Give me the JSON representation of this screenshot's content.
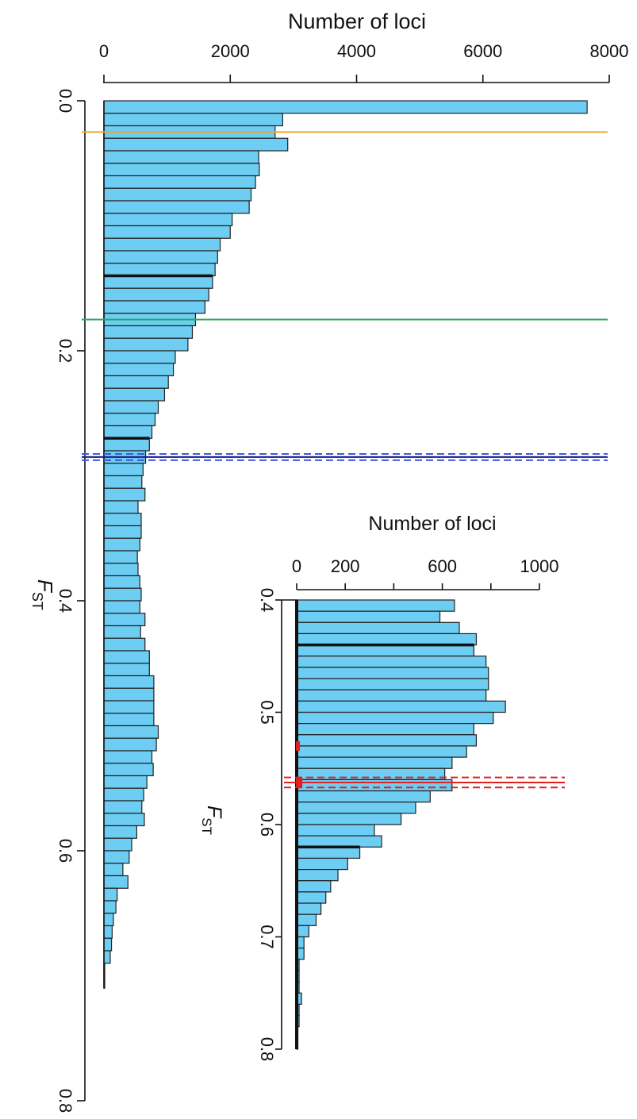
{
  "chart_data": [
    {
      "type": "bar",
      "orientation": "horizontal",
      "xlabel": "Number of loci",
      "ylabel": "F_ST",
      "xlim": [
        0,
        8000
      ],
      "ylim": [
        0,
        0.8
      ],
      "x_ticks": [
        0,
        2000,
        4000,
        6000,
        8000
      ],
      "x_tick_labels": [
        "0",
        "2000",
        "4000",
        "6000",
        "8000"
      ],
      "y_ticks": [
        0.0,
        0.2,
        0.4,
        0.6,
        0.8
      ],
      "y_tick_labels": [
        "0.0",
        "0.2",
        "0.4",
        "0.6",
        "0.8"
      ],
      "bin_width": 0.01,
      "bin_start": 0.0,
      "values": [
        7650,
        2830,
        2710,
        2910,
        2450,
        2460,
        2400,
        2330,
        2300,
        2030,
        2000,
        1840,
        1800,
        1760,
        1720,
        1660,
        1600,
        1450,
        1400,
        1330,
        1130,
        1100,
        1020,
        960,
        860,
        810,
        760,
        720,
        660,
        620,
        600,
        650,
        540,
        590,
        590,
        570,
        530,
        540,
        570,
        590,
        570,
        650,
        580,
        650,
        720,
        720,
        790,
        790,
        790,
        790,
        860,
        830,
        760,
        780,
        680,
        630,
        600,
        640,
        520,
        440,
        400,
        300,
        380,
        210,
        190,
        150,
        130,
        120,
        100,
        5,
        5
      ],
      "background_series_label": "",
      "black_bar_bins": [
        14,
        27
      ],
      "reference_lines": [
        {
          "y": 0.025,
          "color": "#f5a623",
          "style": "solid"
        },
        {
          "y": 0.175,
          "color": "#27a85a",
          "style": "solid"
        },
        {
          "y": 0.285,
          "color": "#1a1a8c",
          "style": "solid"
        },
        {
          "y": 0.2825,
          "color": "#3b5bdb",
          "style": "dashed"
        },
        {
          "y": 0.2875,
          "color": "#3b5bdb",
          "style": "dashed"
        }
      ],
      "annotations": [
        ""
      ]
    },
    {
      "type": "bar",
      "orientation": "horizontal",
      "xlabel": "Number of loci",
      "ylabel": "F_ST",
      "xlim": [
        0,
        1000
      ],
      "ylim": [
        0.4,
        0.8
      ],
      "x_ticks": [
        0,
        200,
        400,
        600,
        800,
        1000
      ],
      "x_tick_labels": [
        "0",
        "200",
        "",
        "600",
        "",
        "1000"
      ],
      "y_ticks": [
        0.4,
        0.5,
        0.6,
        0.7,
        0.8
      ],
      "y_tick_labels": [
        "0.4",
        "0.5",
        "0.6",
        "0.7",
        "0.8"
      ],
      "bin_width": 0.01,
      "bin_start": 0.4,
      "values": [
        650,
        590,
        670,
        740,
        730,
        780,
        790,
        790,
        780,
        860,
        810,
        730,
        740,
        700,
        640,
        610,
        640,
        550,
        490,
        430,
        320,
        350,
        260,
        210,
        170,
        140,
        120,
        100,
        80,
        50,
        30,
        30,
        10,
        10,
        10,
        20,
        10,
        10,
        5,
        5
      ],
      "black_bar_bins": [
        4,
        22
      ],
      "reference_lines": [
        {
          "y": 0.5625,
          "color": "#e02020",
          "style": "solid"
        },
        {
          "y": 0.558,
          "color": "#e02020",
          "style": "dashed"
        },
        {
          "y": 0.567,
          "color": "#e02020",
          "style": "dashed"
        }
      ],
      "red_markers": [
        {
          "y": 0.53,
          "count": 10
        },
        {
          "y": 0.5625,
          "count": 20
        }
      ]
    }
  ],
  "labels": {
    "main_xlabel": "Number of loci",
    "main_ylabel_main": "F",
    "main_ylabel_sub": "ST",
    "inset_xlabel": "Number of loci",
    "inset_ylabel_main": "F",
    "inset_ylabel_sub": "ST"
  },
  "colors": {
    "bar_fill": "#6dcdf2",
    "bar_stroke": "#222222",
    "orange_line": "#f5a623",
    "green_line": "#27a85a",
    "navy_line": "#1a1a8c",
    "blue_dashed": "#3b5bdb",
    "red_line": "#e02020"
  }
}
